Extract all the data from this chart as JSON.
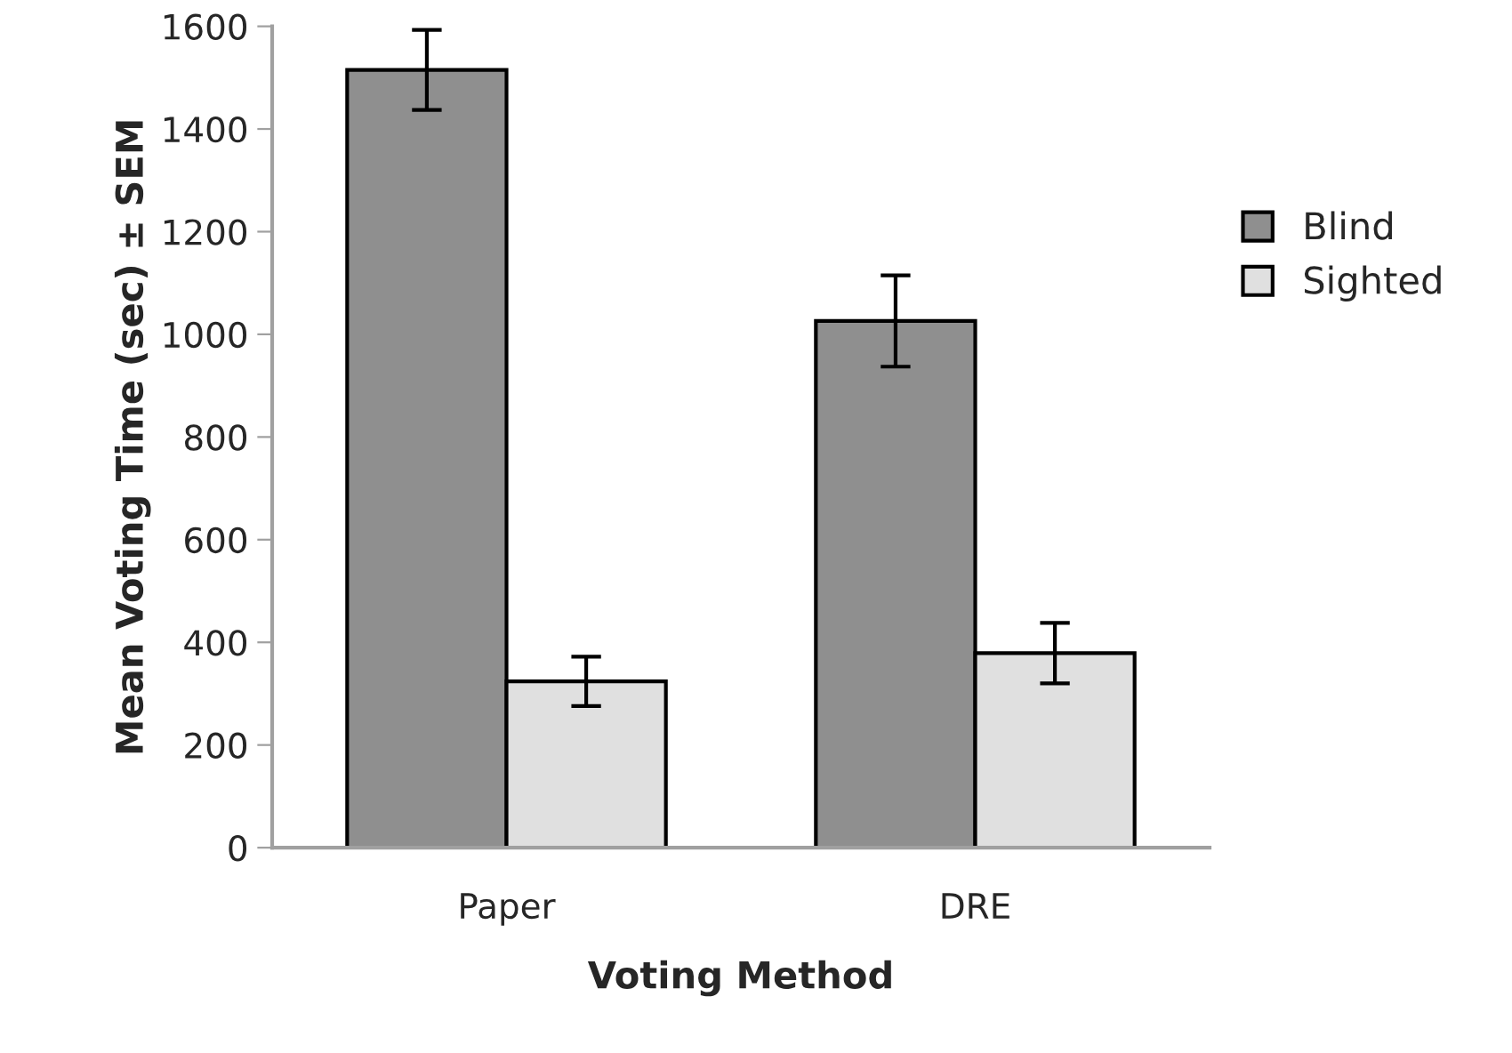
{
  "chart_data": {
    "type": "bar",
    "xlabel": "Voting Method",
    "ylabel": "Mean Voting Time (sec) ± SEM",
    "categories": [
      "Paper",
      "DRE"
    ],
    "series": [
      {
        "name": "Blind",
        "color": "#8f8f8f",
        "values": [
          1515,
          1026
        ],
        "errors": [
          78,
          89
        ]
      },
      {
        "name": "Sighted",
        "color": "#e0e0e0",
        "values": [
          324,
          379
        ],
        "errors": [
          48,
          59
        ]
      }
    ],
    "ylim": [
      0,
      1600
    ],
    "yticks": [
      0,
      200,
      400,
      600,
      800,
      1000,
      1200,
      1400,
      1600
    ],
    "grid": false,
    "legend": "right"
  }
}
